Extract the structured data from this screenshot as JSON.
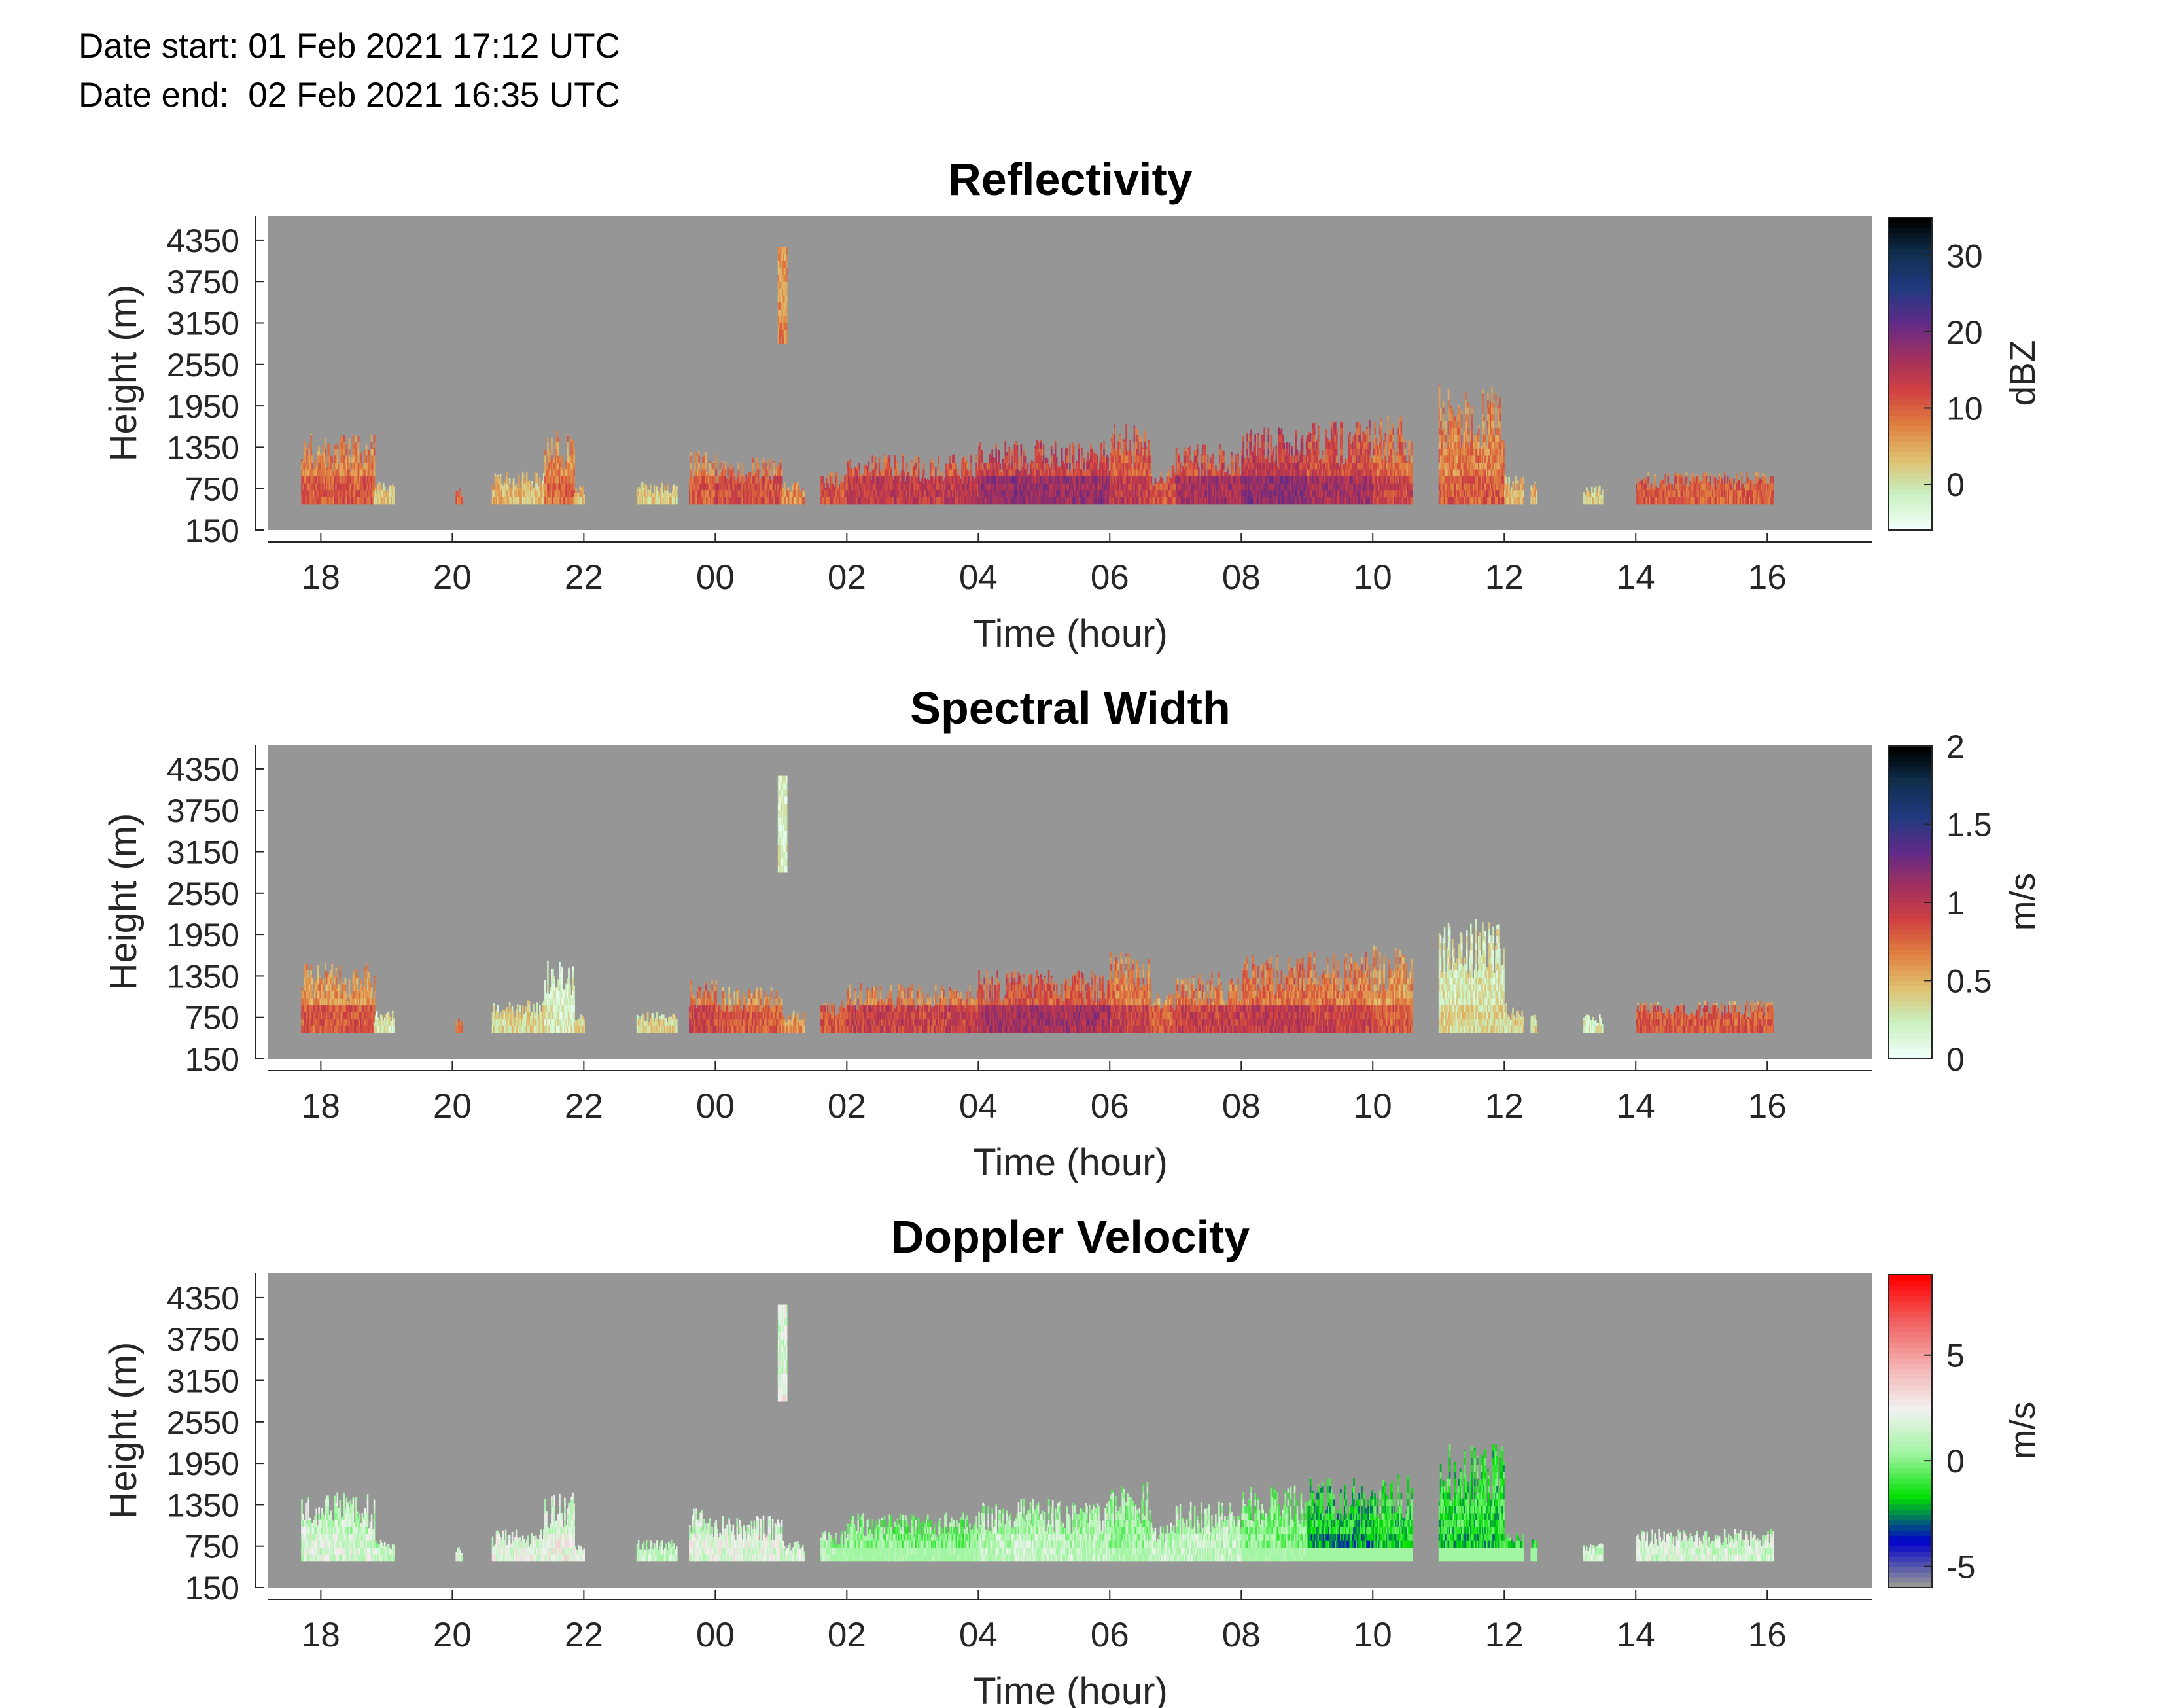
{
  "header": {
    "date_start": "Date start: 01 Feb 2021 17:12 UTC",
    "date_end": "Date end:  02 Feb 2021 16:35 UTC"
  },
  "colors": {
    "no_data": "#969696",
    "axis": "#262626",
    "title": "#000000"
  },
  "chart_data": [
    {
      "type": "heatmap",
      "title": "Reflectivity",
      "xlabel": "Time (hour)",
      "ylabel": "Height (m)",
      "colorbar_label": "dBZ",
      "x_tick_labels": [
        "18",
        "20",
        "22",
        "00",
        "02",
        "04",
        "06",
        "08",
        "10",
        "12",
        "14",
        "16"
      ],
      "x_tick_hours": [
        18,
        20,
        22,
        24,
        26,
        28,
        30,
        32,
        34,
        36,
        38,
        40
      ],
      "xlim": [
        17.2,
        41.6
      ],
      "y_tick_labels": [
        "150",
        "750",
        "1350",
        "1950",
        "2550",
        "3150",
        "3750",
        "4350"
      ],
      "y_ticks": [
        150,
        750,
        1350,
        1950,
        2550,
        3150,
        3750,
        4350
      ],
      "ylim": [
        150,
        4700
      ],
      "colorbar_ticks": [
        0,
        10,
        20,
        30
      ],
      "colorbar_tick_labels": [
        "0",
        "10",
        "20",
        "30"
      ],
      "colorbar_range": [
        -6,
        35
      ],
      "colormap": [
        "#f0fff8",
        "#c8f0c0",
        "#e0c070",
        "#e08040",
        "#d04040",
        "#a03060",
        "#602a8a",
        "#1f3a80",
        "#103050",
        "#000000"
      ],
      "value_range": [
        -6,
        35
      ]
    },
    {
      "type": "heatmap",
      "title": "Spectral Width",
      "xlabel": "Time (hour)",
      "ylabel": "Height (m)",
      "colorbar_label": "m/s",
      "x_tick_labels": [
        "18",
        "20",
        "22",
        "00",
        "02",
        "04",
        "06",
        "08",
        "10",
        "12",
        "14",
        "16"
      ],
      "x_tick_hours": [
        18,
        20,
        22,
        24,
        26,
        28,
        30,
        32,
        34,
        36,
        38,
        40
      ],
      "xlim": [
        17.2,
        41.6
      ],
      "y_tick_labels": [
        "150",
        "750",
        "1350",
        "1950",
        "2550",
        "3150",
        "3750",
        "4350"
      ],
      "y_ticks": [
        150,
        750,
        1350,
        1950,
        2550,
        3150,
        3750,
        4350
      ],
      "ylim": [
        150,
        4700
      ],
      "colorbar_ticks": [
        0,
        0.5,
        1,
        1.5,
        2
      ],
      "colorbar_tick_labels": [
        "0",
        "0.5",
        "1",
        "1.5",
        "2"
      ],
      "colorbar_range": [
        0,
        2
      ],
      "colormap": [
        "#f0fff8",
        "#c8f0c0",
        "#e0c070",
        "#e08040",
        "#d04040",
        "#a03060",
        "#602a8a",
        "#1f3a80",
        "#103050",
        "#000000"
      ],
      "value_range": [
        0,
        2
      ]
    },
    {
      "type": "heatmap",
      "title": "Doppler Velocity",
      "xlabel": "Time (hour)",
      "ylabel": "Height (m)",
      "colorbar_label": "m/s",
      "x_tick_labels": [
        "18",
        "20",
        "22",
        "00",
        "02",
        "04",
        "06",
        "08",
        "10",
        "12",
        "14",
        "16"
      ],
      "x_tick_hours": [
        18,
        20,
        22,
        24,
        26,
        28,
        30,
        32,
        34,
        36,
        38,
        40
      ],
      "xlim": [
        17.2,
        41.6
      ],
      "y_tick_labels": [
        "150",
        "750",
        "1350",
        "1950",
        "2550",
        "3150",
        "3750",
        "4350"
      ],
      "y_ticks": [
        150,
        750,
        1350,
        1950,
        2550,
        3150,
        3750,
        4350
      ],
      "ylim": [
        150,
        4700
      ],
      "colorbar_ticks": [
        -5,
        0,
        5
      ],
      "colorbar_tick_labels": [
        "-5",
        "0",
        "5"
      ],
      "colorbar_range": [
        -6,
        8.8
      ],
      "colormap": [
        "#969696",
        "#0000cc",
        "#00e000",
        "#a0f5a0",
        "#f2f2f2",
        "#f5b0b0",
        "#f06060",
        "#ff0000"
      ],
      "value_range": [
        -6,
        8.8
      ]
    }
  ],
  "echo_segments": [
    {
      "t0": 17.7,
      "t1": 18.8,
      "top": 1550,
      "dbz": 9,
      "sw": 0.7,
      "vel": 1.5
    },
    {
      "t0": 18.8,
      "t1": 19.1,
      "top": 850,
      "dbz": 2,
      "sw": 0.2,
      "vel": 1.0
    },
    {
      "t0": 20.05,
      "t1": 20.15,
      "top": 750,
      "dbz": 8,
      "sw": 0.6,
      "vel": 1.5
    },
    {
      "t0": 20.6,
      "t1": 21.4,
      "top": 1000,
      "dbz": 3,
      "sw": 0.3,
      "vel": 1.8
    },
    {
      "t0": 21.4,
      "t1": 21.85,
      "top": 1600,
      "dbz": 8,
      "sw": 0.2,
      "vel": 2.0
    },
    {
      "t0": 21.85,
      "t1": 22.0,
      "top": 800,
      "dbz": 3,
      "sw": 0.3,
      "vel": 1.5
    },
    {
      "t0": 22.8,
      "t1": 23.4,
      "top": 850,
      "dbz": 2,
      "sw": 0.3,
      "vel": 1.0
    },
    {
      "t0": 23.6,
      "t1": 24.0,
      "top": 1300,
      "dbz": 9,
      "sw": 0.8,
      "vel": 1.8
    },
    {
      "t0": 24.0,
      "t1": 25.0,
      "top": 1200,
      "dbz": 10,
      "sw": 0.7,
      "vel": 1.8
    },
    {
      "t0": 25.0,
      "t1": 25.35,
      "top": 850,
      "dbz": 6,
      "sw": 0.5,
      "vel": 1.5
    },
    {
      "t0": 25.6,
      "t1": 26.0,
      "top": 1000,
      "dbz": 10,
      "sw": 0.7,
      "vel": 0.5
    },
    {
      "t0": 26.0,
      "t1": 28.0,
      "top": 1250,
      "dbz": 12,
      "sw": 0.8,
      "vel": 0.0
    },
    {
      "t0": 28.0,
      "t1": 30.0,
      "top": 1450,
      "dbz": 15,
      "sw": 0.95,
      "vel": 1.0
    },
    {
      "t0": 30.0,
      "t1": 30.6,
      "top": 1700,
      "dbz": 12,
      "sw": 0.8,
      "vel": 0.5
    },
    {
      "t0": 30.6,
      "t1": 31.0,
      "top": 1100,
      "dbz": 10,
      "sw": 0.7,
      "vel": 1.0
    },
    {
      "t0": 31.0,
      "t1": 32.0,
      "top": 1400,
      "dbz": 14,
      "sw": 0.8,
      "vel": 1.0
    },
    {
      "t0": 32.0,
      "t1": 33.0,
      "top": 1650,
      "dbz": 16,
      "sw": 0.85,
      "vel": 0.0
    },
    {
      "t0": 33.0,
      "t1": 34.0,
      "top": 1750,
      "dbz": 14,
      "sw": 0.8,
      "vel": -2.0
    },
    {
      "t0": 34.0,
      "t1": 34.6,
      "top": 1800,
      "dbz": 11,
      "sw": 0.7,
      "vel": -1.5
    },
    {
      "t0": 35.0,
      "t1": 36.0,
      "top": 2250,
      "dbz": 9,
      "sw": 0.3,
      "vel": -1.5
    },
    {
      "t0": 36.0,
      "t1": 36.3,
      "top": 950,
      "dbz": 3,
      "sw": 0.3,
      "vel": -1.0
    },
    {
      "t0": 36.4,
      "t1": 36.5,
      "top": 850,
      "dbz": 3,
      "sw": 0.3,
      "vel": -1.0
    },
    {
      "t0": 37.2,
      "t1": 37.5,
      "top": 800,
      "dbz": 2,
      "sw": 0.2,
      "vel": 1.0
    },
    {
      "t0": 38.0,
      "t1": 40.1,
      "top": 1000,
      "dbz": 9,
      "sw": 0.7,
      "vel": 1.5
    }
  ],
  "high_echo": {
    "t0": 24.95,
    "t1": 25.08,
    "bottom": 2850,
    "top": 4250,
    "dbz": 7,
    "sw": 0.2,
    "vel": 2.0
  }
}
